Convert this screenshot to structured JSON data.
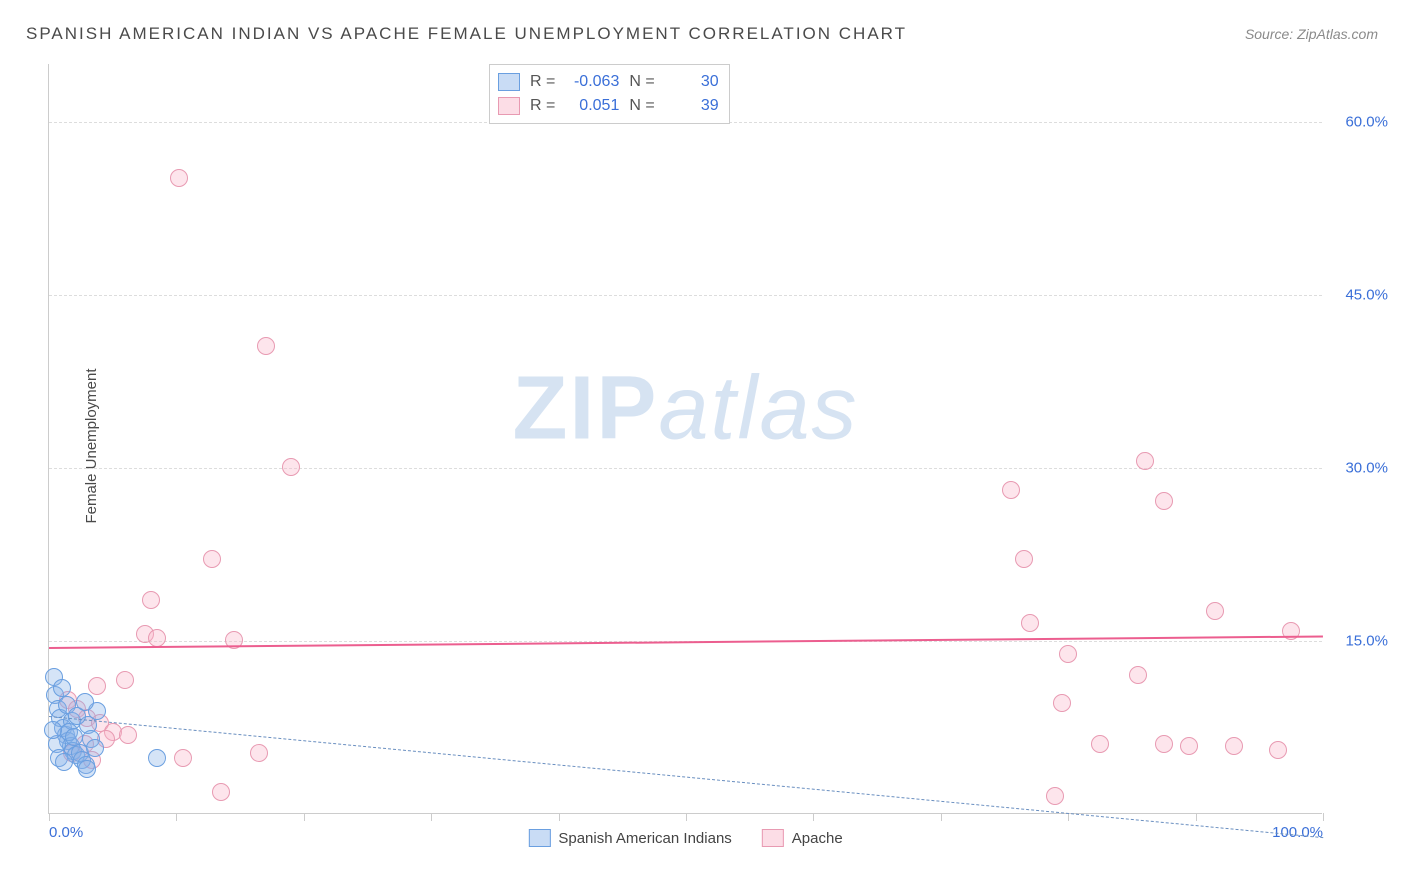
{
  "title": "SPANISH AMERICAN INDIAN VS APACHE FEMALE UNEMPLOYMENT CORRELATION CHART",
  "source": "Source: ZipAtlas.com",
  "ylabel": "Female Unemployment",
  "watermark_a": "ZIP",
  "watermark_b": "atlas",
  "chart": {
    "type": "scatter",
    "xlim": [
      0,
      100
    ],
    "ylim": [
      0,
      65
    ],
    "background_color": "#ffffff",
    "grid_color": "#dddddd",
    "grid_dash": true,
    "marker_size": 18,
    "x_ticks": [
      0,
      10,
      20,
      30,
      40,
      50,
      60,
      70,
      80,
      90,
      100
    ],
    "x_tick_labels": {
      "0": "0.0%",
      "100": "100.0%"
    },
    "y_ticks": [
      15,
      30,
      45,
      60
    ],
    "y_tick_labels": [
      "15.0%",
      "30.0%",
      "45.0%",
      "60.0%"
    ],
    "series": {
      "blue": {
        "label": "Spanish American Indians",
        "fill": "rgba(135,178,232,0.35)",
        "border": "#6a9fe0",
        "R": "-0.063",
        "N": "30",
        "trend": {
          "y_left": 8.5,
          "y_right": -2.0,
          "dashed": true,
          "color": "#6a8fc0",
          "width": 1.5
        },
        "points": [
          [
            0.4,
            11.8
          ],
          [
            0.5,
            10.2
          ],
          [
            0.7,
            9.0
          ],
          [
            0.9,
            8.2
          ],
          [
            1.1,
            7.4
          ],
          [
            1.3,
            6.8
          ],
          [
            1.5,
            6.2
          ],
          [
            1.7,
            5.8
          ],
          [
            1.9,
            5.4
          ],
          [
            2.1,
            5.0
          ],
          [
            2.4,
            5.2
          ],
          [
            2.6,
            4.6
          ],
          [
            2.9,
            4.2
          ],
          [
            3.1,
            7.6
          ],
          [
            3.3,
            6.4
          ],
          [
            3.6,
            5.6
          ],
          [
            3.8,
            8.8
          ],
          [
            1.0,
            10.8
          ],
          [
            1.4,
            9.4
          ],
          [
            1.8,
            8.0
          ],
          [
            0.6,
            6.0
          ],
          [
            0.8,
            4.8
          ],
          [
            1.2,
            4.4
          ],
          [
            1.6,
            7.0
          ],
          [
            2.0,
            6.6
          ],
          [
            2.2,
            8.4
          ],
          [
            2.8,
            9.6
          ],
          [
            0.3,
            7.2
          ],
          [
            8.5,
            4.8
          ],
          [
            3.0,
            3.8
          ]
        ]
      },
      "pink": {
        "label": "Apache",
        "fill": "rgba(248,180,200,0.35)",
        "border": "#e89ab2",
        "R": "0.051",
        "N": "39",
        "trend": {
          "y_left": 14.5,
          "y_right": 15.5,
          "dashed": false,
          "color": "#ec5e8f",
          "width": 2.5
        },
        "points": [
          [
            10.2,
            55.0
          ],
          [
            17.0,
            40.5
          ],
          [
            19.0,
            30.0
          ],
          [
            12.8,
            22.0
          ],
          [
            8.0,
            18.5
          ],
          [
            7.5,
            15.5
          ],
          [
            8.5,
            15.2
          ],
          [
            14.5,
            15.0
          ],
          [
            6.0,
            11.5
          ],
          [
            3.8,
            11.0
          ],
          [
            1.5,
            9.8
          ],
          [
            2.2,
            9.0
          ],
          [
            3.0,
            8.2
          ],
          [
            4.0,
            7.8
          ],
          [
            5.0,
            7.0
          ],
          [
            2.8,
            6.0
          ],
          [
            1.8,
            5.2
          ],
          [
            4.5,
            6.4
          ],
          [
            6.2,
            6.8
          ],
          [
            3.4,
            4.6
          ],
          [
            10.5,
            4.8
          ],
          [
            13.5,
            1.8
          ],
          [
            16.5,
            5.2
          ],
          [
            80.0,
            13.8
          ],
          [
            75.5,
            28.0
          ],
          [
            76.5,
            22.0
          ],
          [
            77.0,
            16.5
          ],
          [
            79.5,
            9.5
          ],
          [
            82.5,
            6.0
          ],
          [
            79.0,
            1.5
          ],
          [
            87.5,
            27.0
          ],
          [
            85.5,
            12.0
          ],
          [
            87.5,
            6.0
          ],
          [
            91.5,
            17.5
          ],
          [
            89.5,
            5.8
          ],
          [
            93.0,
            5.8
          ],
          [
            96.5,
            5.5
          ],
          [
            97.5,
            15.8
          ],
          [
            86.0,
            30.5
          ]
        ]
      }
    }
  },
  "legend_labels": {
    "R": "R =",
    "N": "N ="
  }
}
